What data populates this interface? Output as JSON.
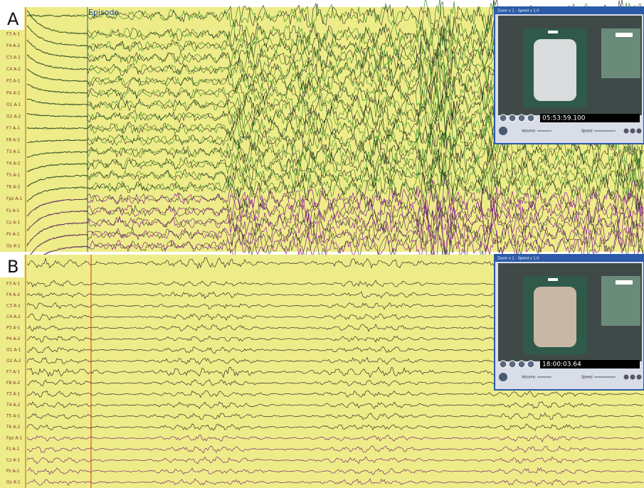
{
  "panels": [
    {
      "label": "A",
      "marker": "Episode",
      "channels": [
        "F3 A-1",
        "F4 A-2",
        "C3 A-1",
        "C4 A-2",
        "P3 A-1",
        "P4 A-2",
        "O1 A-1",
        "O2 A-2",
        "F7 A-1",
        "F8 A-2",
        "T3 A-1",
        "T4 A-2",
        "T5 A-1",
        "T6 A-2",
        "Fpz A-1",
        "Fz A-1",
        "Cz A-1",
        "Pz A-1",
        "Oz A-1"
      ],
      "video": {
        "title": "Zoom x 1 - Speed x 1.0",
        "time": "05:53:59.100",
        "volume": "Volume:",
        "speed": "Speed"
      }
    },
    {
      "label": "B",
      "channels": [
        "F3 A-1",
        "F4 A-2",
        "C3 A-1",
        "C4 A-2",
        "P3 A-1",
        "P4 A-2",
        "O1 A-1",
        "O2 A-2",
        "F7 A-1",
        "F8 A-2",
        "T3 A-1",
        "T4 A-2",
        "T5 A-1",
        "T6 A-2",
        "Fpz A-1",
        "Fz A-1",
        "Cz A-1",
        "Pz A-1",
        "Oz A-1"
      ],
      "video": {
        "title": "Zoom x 1 - Speed x 1.0",
        "time": "18:00:03.64",
        "volume": "Volume:",
        "speed": "Speed"
      }
    }
  ]
}
